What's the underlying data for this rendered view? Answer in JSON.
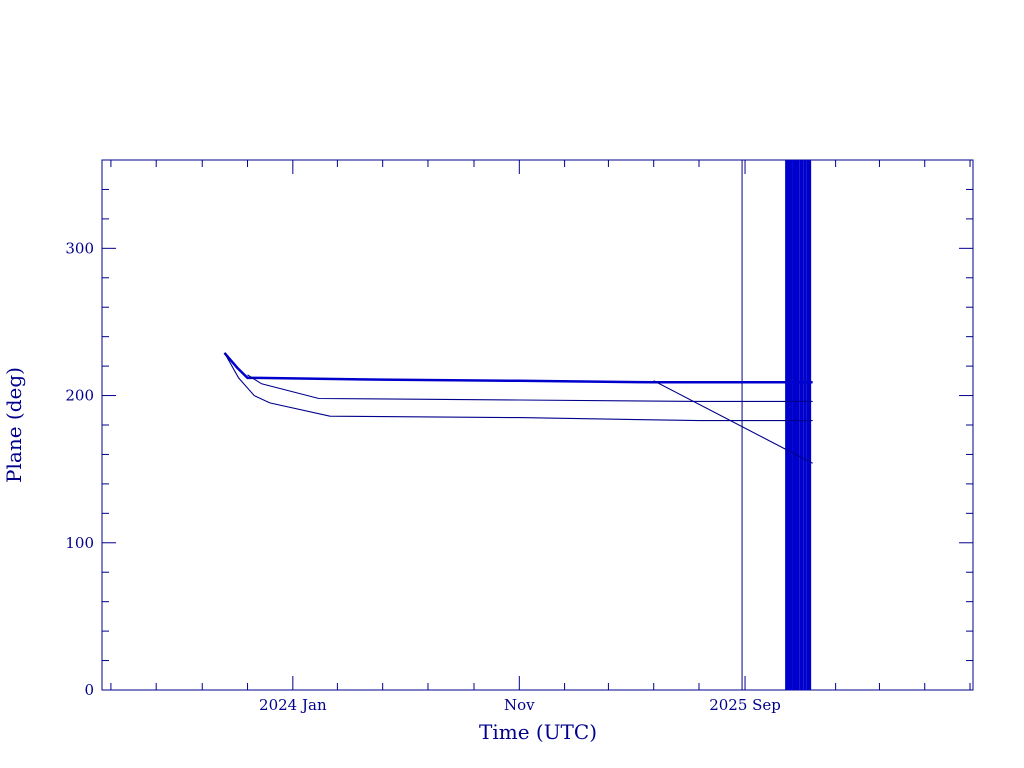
{
  "chart_data": {
    "type": "line",
    "title": "",
    "xlabel": "Time (UTC)",
    "ylabel": "Plane (deg)",
    "x_unit": "month",
    "xlim": [
      "2023-04-19",
      "2026-07-05"
    ],
    "ylim": [
      0,
      360
    ],
    "x_ticks": [
      {
        "x": "2024-01-01",
        "label": "2024 Jan"
      },
      {
        "x": "2024-11-01",
        "label": "Nov"
      },
      {
        "x": "2025-09-01",
        "label": "2025 Sep"
      }
    ],
    "y_ticks": [
      {
        "y": 0,
        "label": "0"
      },
      {
        "y": 100,
        "label": "100"
      },
      {
        "y": 200,
        "label": "200"
      },
      {
        "y": 300,
        "label": "300"
      }
    ],
    "grid": false,
    "colors": {
      "axis": "#00008b",
      "series": "#0000cd",
      "marker_lines": "#00008b"
    },
    "series": [
      {
        "points": [
          [
            "2023-10-01",
            229
          ],
          [
            "2023-10-18",
            219
          ],
          [
            "2023-11-01",
            212
          ],
          [
            "2023-11-15",
            212
          ],
          [
            "2024-04-01",
            211
          ],
          [
            "2024-11-01",
            210
          ],
          [
            "2025-05-01",
            209
          ],
          [
            "2025-09-01",
            209
          ],
          [
            "2025-12-01",
            209
          ]
        ]
      },
      {
        "points": [
          [
            "2023-11-01",
            214
          ],
          [
            "2023-11-20",
            208
          ],
          [
            "2024-02-05",
            198
          ],
          [
            "2024-11-01",
            197
          ],
          [
            "2025-07-01",
            196
          ],
          [
            "2025-12-01",
            196
          ]
        ]
      },
      {
        "points": [
          [
            "2023-10-01",
            229
          ],
          [
            "2023-10-20",
            212
          ],
          [
            "2023-11-10",
            200
          ],
          [
            "2023-12-01",
            195
          ],
          [
            "2024-02-20",
            186
          ],
          [
            "2024-11-01",
            185
          ],
          [
            "2025-07-01",
            183
          ],
          [
            "2025-12-01",
            183
          ]
        ]
      },
      {
        "points": [
          [
            "2025-05-01",
            210
          ],
          [
            "2025-12-01",
            154
          ]
        ]
      }
    ],
    "vertical_lines": [
      "2025-08-28",
      "2025-10-27",
      "2025-10-29",
      "2025-10-31",
      "2025-11-02",
      "2025-11-06",
      "2025-11-08",
      "2025-11-11",
      "2025-11-15",
      "2025-11-17",
      "2025-11-21",
      "2025-11-25",
      "2025-11-27"
    ]
  }
}
